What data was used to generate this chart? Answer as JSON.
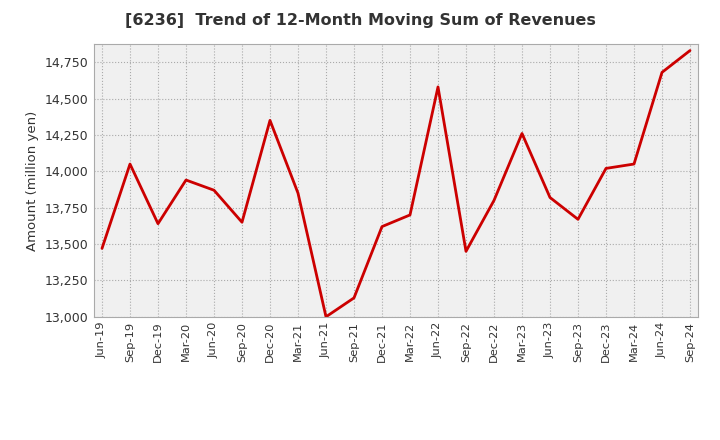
{
  "title": "[6236]  Trend of 12-Month Moving Sum of Revenues",
  "ylabel": "Amount (million yen)",
  "fig_background_color": "#ffffff",
  "plot_background_color": "#f0f0f0",
  "line_color": "#cc0000",
  "grid_color": "#aaaaaa",
  "title_color": "#333333",
  "ylim": [
    13000,
    14875
  ],
  "yticks": [
    13000,
    13250,
    13500,
    13750,
    14000,
    14250,
    14500,
    14750
  ],
  "x_labels": [
    "Jun-19",
    "Sep-19",
    "Dec-19",
    "Mar-20",
    "Jun-20",
    "Sep-20",
    "Dec-20",
    "Mar-21",
    "Jun-21",
    "Sep-21",
    "Dec-21",
    "Mar-22",
    "Jun-22",
    "Sep-22",
    "Dec-22",
    "Mar-23",
    "Jun-23",
    "Sep-23",
    "Dec-23",
    "Mar-24",
    "Jun-24",
    "Sep-24"
  ],
  "values": [
    13470,
    14050,
    13640,
    13940,
    13870,
    13650,
    14350,
    13850,
    13000,
    13130,
    13620,
    13700,
    14580,
    13450,
    13800,
    14260,
    13820,
    13670,
    14020,
    14050,
    14680,
    14830
  ]
}
